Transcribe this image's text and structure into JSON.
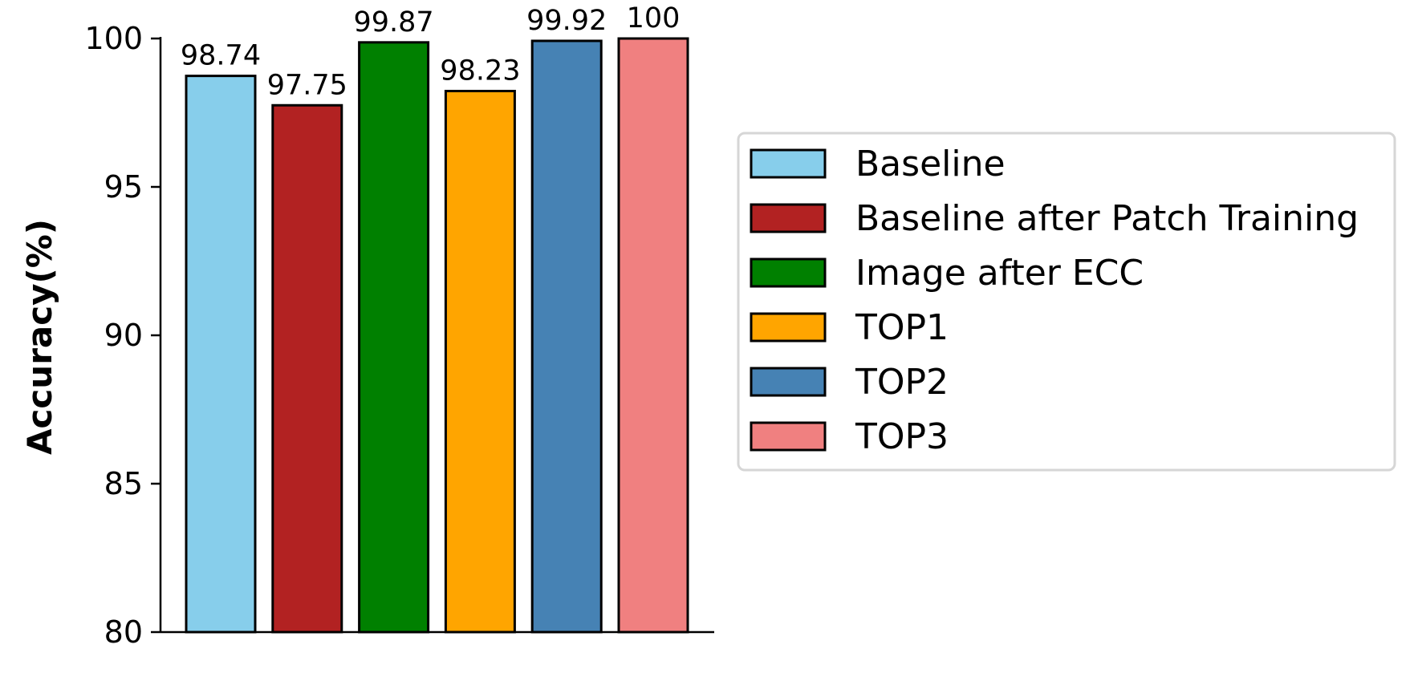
{
  "chart_data": {
    "type": "bar",
    "categories": [
      "Baseline",
      "Baseline after Patch Training",
      "Image after ECC",
      "TOP1",
      "TOP2",
      "TOP3"
    ],
    "values": [
      98.74,
      97.75,
      99.87,
      98.23,
      99.92,
      100
    ],
    "value_labels": [
      "98.74",
      "97.75",
      "99.87",
      "98.23",
      "99.92",
      "100"
    ],
    "colors": [
      "#87ceeb",
      "#b22222",
      "#008000",
      "#ffa500",
      "#4682b4",
      "#f08080"
    ],
    "title": "",
    "xlabel": "",
    "ylabel": "Accuracy(%)",
    "ylim": [
      80,
      100
    ],
    "yticks": [
      "80",
      "85",
      "90",
      "95",
      "100"
    ],
    "grid": false,
    "legend": {
      "placement": "right",
      "entries": [
        "Baseline",
        "Baseline after Patch Training",
        "Image after ECC",
        "TOP1",
        "TOP2",
        "TOP3"
      ]
    }
  }
}
